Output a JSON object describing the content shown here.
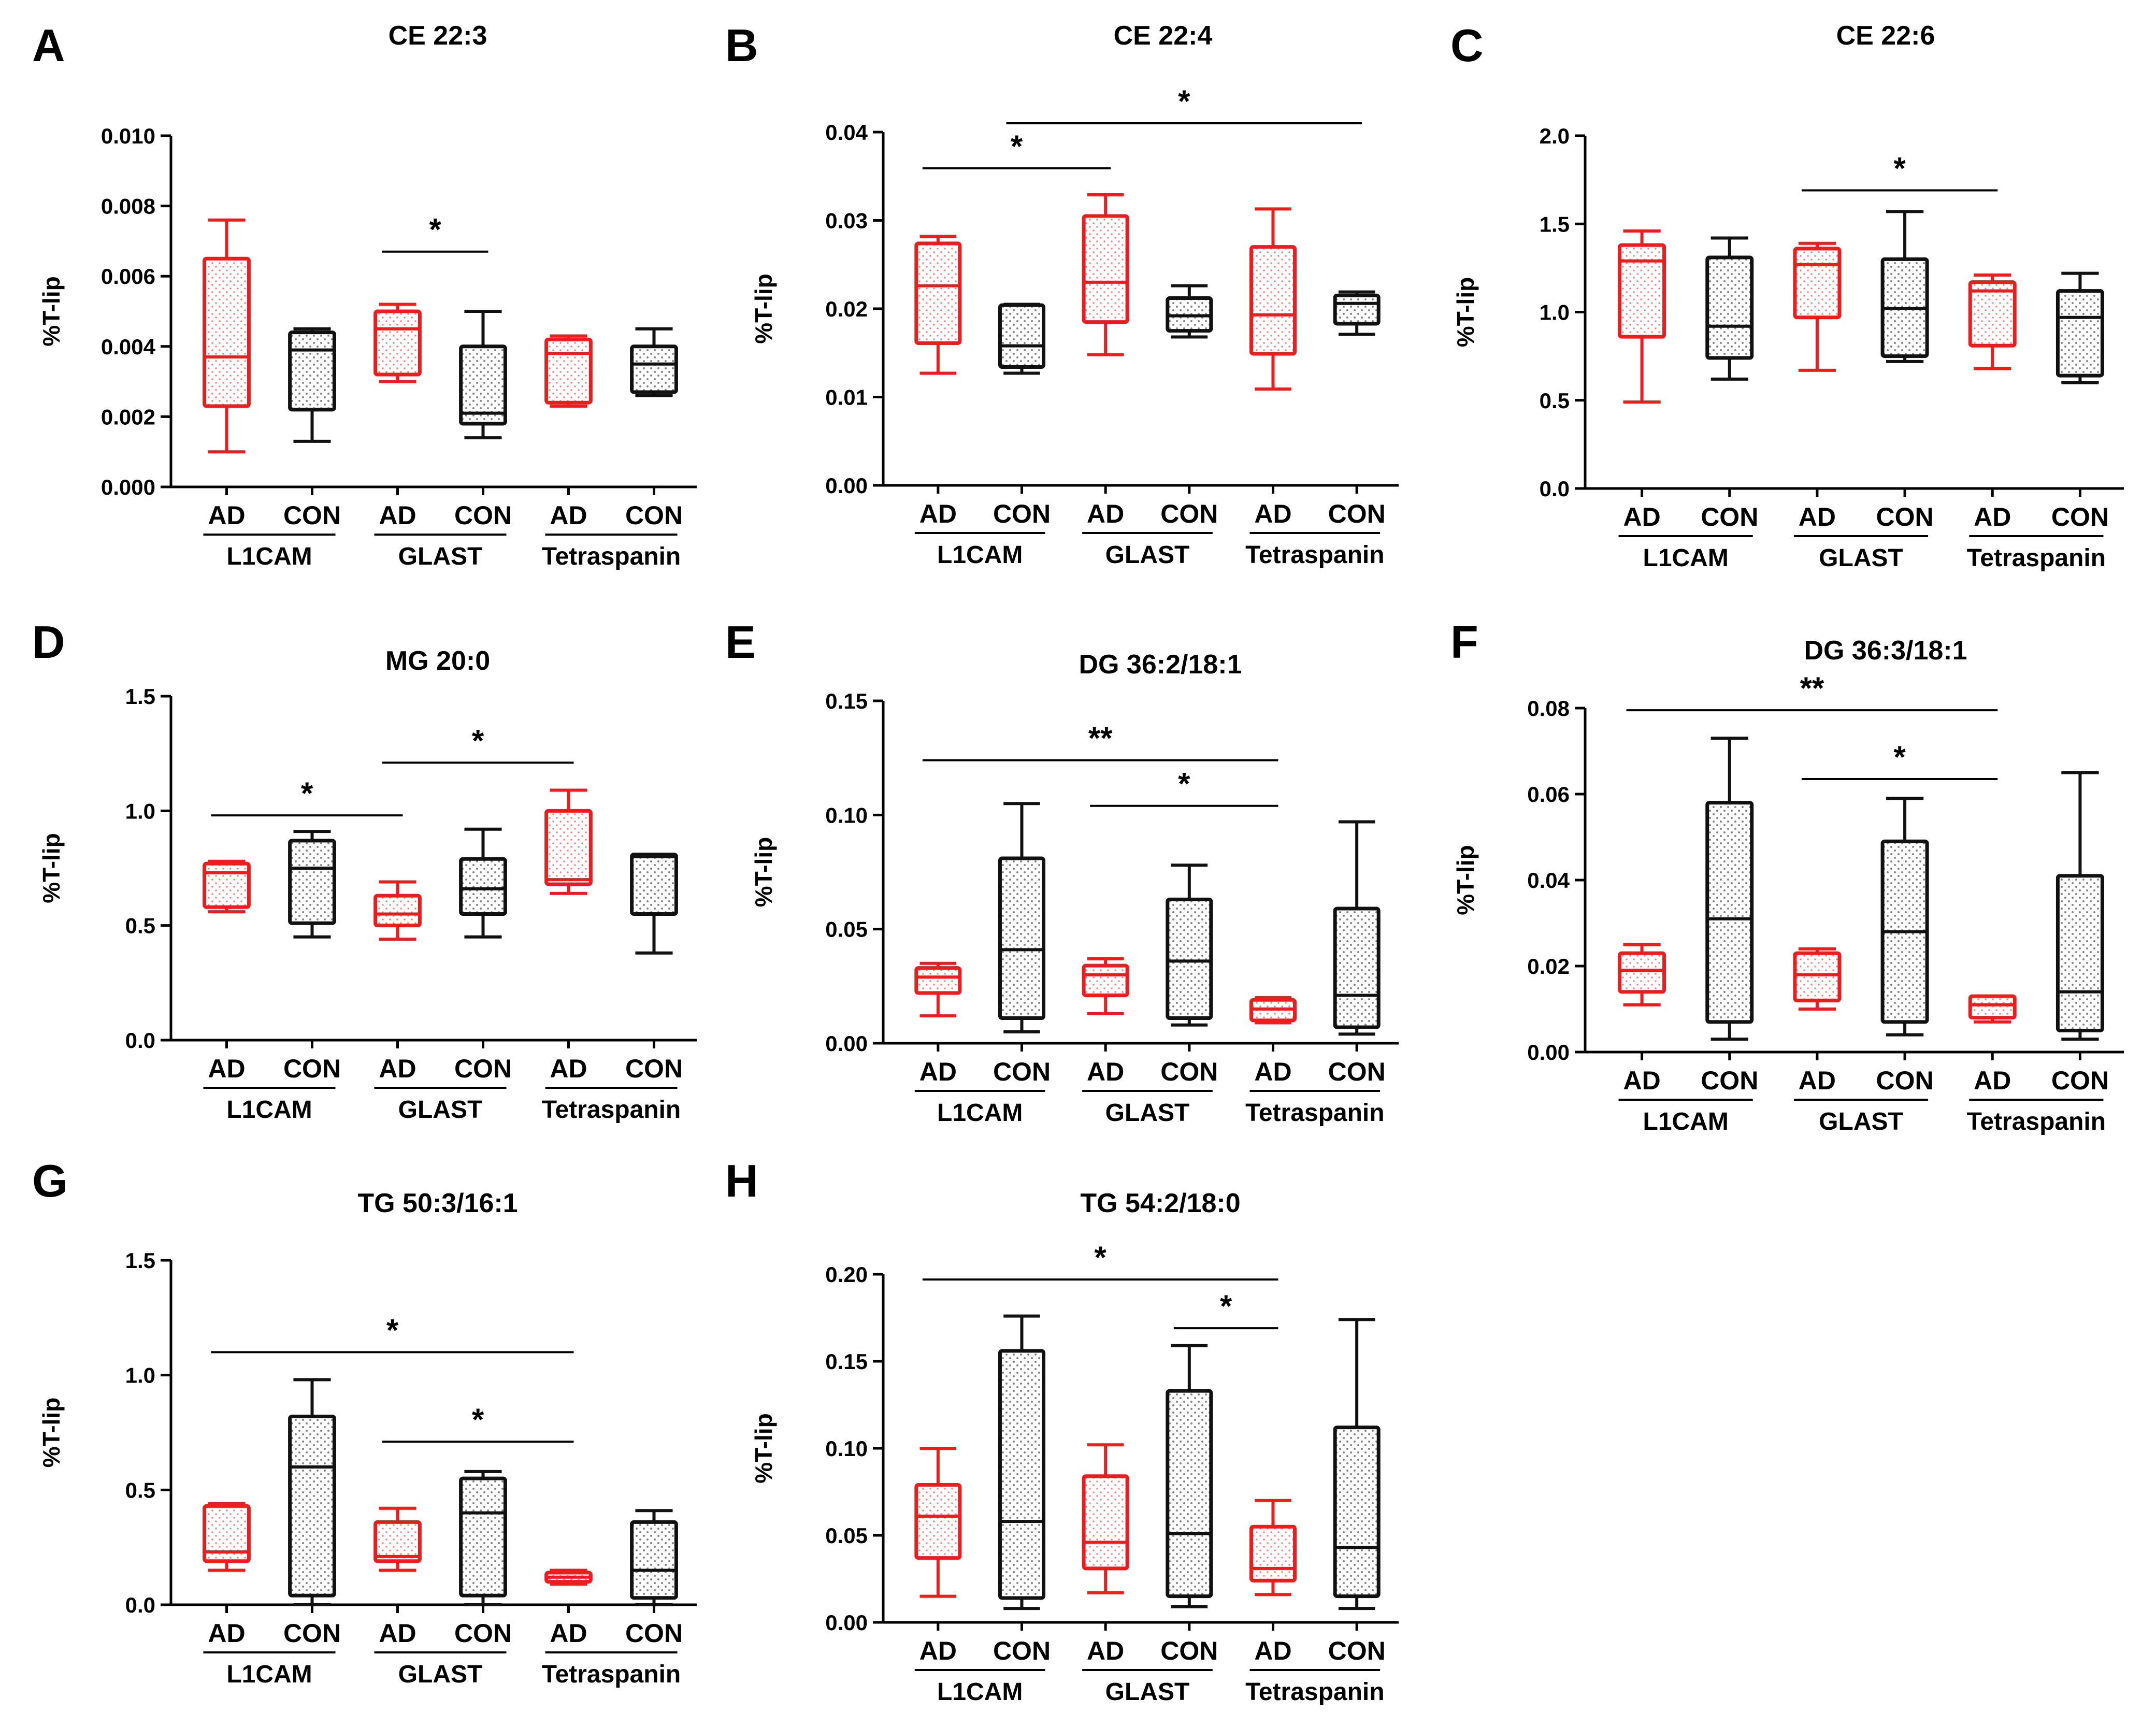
{
  "colors": {
    "ad": "#ee1c1c",
    "con": "#111111",
    "axis": "#000000"
  },
  "categories": [
    "AD",
    "CON",
    "AD",
    "CON",
    "AD",
    "CON"
  ],
  "groups": [
    "L1CAM",
    "GLAST",
    "Tetraspanin"
  ],
  "chart_data": [
    {
      "panel": "A",
      "title": "CE 22:3",
      "type": "boxplot",
      "ylabel": "%T-lip",
      "ylim": [
        0,
        0.01
      ],
      "yticks": [
        "0.000",
        "0.002",
        "0.004",
        "0.006",
        "0.008",
        "0.010"
      ],
      "boxes": [
        {
          "min": 0.001,
          "q1": 0.0023,
          "median": 0.0037,
          "q3": 0.0065,
          "max": 0.0076
        },
        {
          "min": 0.0013,
          "q1": 0.0022,
          "median": 0.0039,
          "q3": 0.0044,
          "max": 0.0045
        },
        {
          "min": 0.003,
          "q1": 0.0032,
          "median": 0.0045,
          "q3": 0.005,
          "max": 0.0052
        },
        {
          "min": 0.0014,
          "q1": 0.0018,
          "median": 0.0021,
          "q3": 0.004,
          "max": 0.005
        },
        {
          "min": 0.0023,
          "q1": 0.0024,
          "median": 0.0038,
          "q3": 0.0042,
          "max": 0.0043
        },
        {
          "min": 0.0026,
          "q1": 0.0027,
          "median": 0.0035,
          "q3": 0.004,
          "max": 0.0045
        }
      ],
      "significance": [
        {
          "from": 2,
          "to": 3,
          "level": 0.0067,
          "label": "*"
        }
      ]
    },
    {
      "panel": "B",
      "title": "CE 22:4",
      "type": "boxplot",
      "ylabel": "%T-lip",
      "ylim": [
        0,
        0.04
      ],
      "yticks": [
        "0.00",
        "0.01",
        "0.02",
        "0.03",
        "0.04"
      ],
      "boxes": [
        {
          "min": 0.0127,
          "q1": 0.0161,
          "median": 0.0226,
          "q3": 0.0274,
          "max": 0.0282
        },
        {
          "min": 0.0127,
          "q1": 0.0134,
          "median": 0.0158,
          "q3": 0.0204,
          "max": 0.0205
        },
        {
          "min": 0.0148,
          "q1": 0.0185,
          "median": 0.023,
          "q3": 0.0305,
          "max": 0.0329
        },
        {
          "min": 0.0168,
          "q1": 0.0175,
          "median": 0.0192,
          "q3": 0.0212,
          "max": 0.0226
        },
        {
          "min": 0.0109,
          "q1": 0.0149,
          "median": 0.0193,
          "q3": 0.027,
          "max": 0.0313
        },
        {
          "min": 0.0171,
          "q1": 0.0183,
          "median": 0.0206,
          "q3": 0.0215,
          "max": 0.0219
        }
      ],
      "significance": [
        {
          "from": 0,
          "to": 2,
          "level": 0.0359,
          "label": "*"
        },
        {
          "from": 1,
          "to": 5,
          "level": 0.041,
          "label": "*"
        }
      ]
    },
    {
      "panel": "C",
      "title": "CE 22:6",
      "type": "boxplot",
      "ylabel": "%T-lip",
      "ylim": [
        0,
        2.0
      ],
      "yticks": [
        "0.0",
        "0.5",
        "1.0",
        "1.5",
        "2.0"
      ],
      "boxes": [
        {
          "min": 0.49,
          "q1": 0.86,
          "median": 1.29,
          "q3": 1.38,
          "max": 1.46
        },
        {
          "min": 0.62,
          "q1": 0.74,
          "median": 0.92,
          "q3": 1.31,
          "max": 1.42
        },
        {
          "min": 0.67,
          "q1": 0.97,
          "median": 1.27,
          "q3": 1.36,
          "max": 1.39
        },
        {
          "min": 0.72,
          "q1": 0.75,
          "median": 1.02,
          "q3": 1.3,
          "max": 1.57
        },
        {
          "min": 0.68,
          "q1": 0.81,
          "median": 1.12,
          "q3": 1.17,
          "max": 1.21
        },
        {
          "min": 0.6,
          "q1": 0.64,
          "median": 0.97,
          "q3": 1.12,
          "max": 1.22
        }
      ],
      "significance": [
        {
          "from": 2,
          "to": 4,
          "level": 1.69,
          "label": "*"
        }
      ]
    },
    {
      "panel": "D",
      "title": "MG 20:0",
      "type": "boxplot",
      "ylabel": "%T-lip",
      "ylim": [
        0,
        1.5
      ],
      "yticks": [
        "0.0",
        "0.5",
        "1.0",
        "1.5"
      ],
      "boxes": [
        {
          "min": 0.56,
          "q1": 0.58,
          "median": 0.73,
          "q3": 0.77,
          "max": 0.78
        },
        {
          "min": 0.45,
          "q1": 0.51,
          "median": 0.75,
          "q3": 0.87,
          "max": 0.91
        },
        {
          "min": 0.44,
          "q1": 0.5,
          "median": 0.55,
          "q3": 0.63,
          "max": 0.69
        },
        {
          "min": 0.45,
          "q1": 0.55,
          "median": 0.66,
          "q3": 0.79,
          "max": 0.92
        },
        {
          "min": 0.64,
          "q1": 0.68,
          "median": 0.7,
          "q3": 1.0,
          "max": 1.09
        },
        {
          "min": 0.38,
          "q1": 0.55,
          "median": 0.8,
          "q3": 0.81,
          "max": 0.81
        }
      ],
      "significance": [
        {
          "from": 0,
          "to": 2,
          "level": 0.98,
          "label": "*"
        },
        {
          "from": 2,
          "to": 4,
          "level": 1.21,
          "label": "*"
        }
      ]
    },
    {
      "panel": "E",
      "title": "DG 36:2/18:1",
      "type": "boxplot",
      "ylabel": "%T-lip",
      "ylim": [
        0,
        0.15
      ],
      "yticks": [
        "0.00",
        "0.05",
        "0.10",
        "0.15"
      ],
      "boxes": [
        {
          "min": 0.012,
          "q1": 0.022,
          "median": 0.029,
          "q3": 0.033,
          "max": 0.035
        },
        {
          "min": 0.005,
          "q1": 0.011,
          "median": 0.041,
          "q3": 0.081,
          "max": 0.105
        },
        {
          "min": 0.013,
          "q1": 0.021,
          "median": 0.03,
          "q3": 0.034,
          "max": 0.037
        },
        {
          "min": 0.008,
          "q1": 0.011,
          "median": 0.036,
          "q3": 0.063,
          "max": 0.078
        },
        {
          "min": 0.009,
          "q1": 0.01,
          "median": 0.015,
          "q3": 0.019,
          "max": 0.02
        },
        {
          "min": 0.004,
          "q1": 0.007,
          "median": 0.021,
          "q3": 0.059,
          "max": 0.097
        }
      ],
      "significance": [
        {
          "from": 0,
          "to": 4,
          "level": 0.124,
          "label": "**"
        },
        {
          "from": 2,
          "to": 4,
          "level": 0.104,
          "label": "*"
        }
      ]
    },
    {
      "panel": "F",
      "title": "DG 36:3/18:1",
      "type": "boxplot",
      "ylabel": "%T-lip",
      "ylim": [
        0,
        0.08
      ],
      "yticks": [
        "0.00",
        "0.02",
        "0.04",
        "0.06",
        "0.08"
      ],
      "boxes": [
        {
          "min": 0.011,
          "q1": 0.014,
          "median": 0.019,
          "q3": 0.023,
          "max": 0.025
        },
        {
          "min": 0.003,
          "q1": 0.007,
          "median": 0.031,
          "q3": 0.058,
          "max": 0.073
        },
        {
          "min": 0.01,
          "q1": 0.012,
          "median": 0.018,
          "q3": 0.023,
          "max": 0.024
        },
        {
          "min": 0.004,
          "q1": 0.007,
          "median": 0.028,
          "q3": 0.049,
          "max": 0.059
        },
        {
          "min": 0.007,
          "q1": 0.008,
          "median": 0.011,
          "q3": 0.013,
          "max": 0.013
        },
        {
          "min": 0.003,
          "q1": 0.005,
          "median": 0.014,
          "q3": 0.041,
          "max": 0.065
        }
      ],
      "significance": [
        {
          "from": 0,
          "to": 4,
          "level": 0.0795,
          "label": "**"
        },
        {
          "from": 2,
          "to": 4,
          "level": 0.0635,
          "label": "*"
        }
      ]
    },
    {
      "panel": "G",
      "title": "TG 50:3/16:1",
      "type": "boxplot",
      "ylabel": "%T-lip",
      "ylim": [
        0,
        1.5
      ],
      "yticks": [
        "0.0",
        "0.5",
        "1.0",
        "1.5"
      ],
      "boxes": [
        {
          "min": 0.15,
          "q1": 0.19,
          "median": 0.23,
          "q3": 0.43,
          "max": 0.44
        },
        {
          "min": 0.0,
          "q1": 0.04,
          "median": 0.6,
          "q3": 0.82,
          "max": 0.98
        },
        {
          "min": 0.15,
          "q1": 0.19,
          "median": 0.21,
          "q3": 0.36,
          "max": 0.42
        },
        {
          "min": 0.0,
          "q1": 0.04,
          "median": 0.4,
          "q3": 0.55,
          "max": 0.58
        },
        {
          "min": 0.09,
          "q1": 0.1,
          "median": 0.12,
          "q3": 0.14,
          "max": 0.15
        },
        {
          "min": 0.0,
          "q1": 0.03,
          "median": 0.15,
          "q3": 0.36,
          "max": 0.41
        }
      ],
      "significance": [
        {
          "from": 0,
          "to": 4,
          "level": 1.1,
          "label": "*"
        },
        {
          "from": 2,
          "to": 4,
          "level": 0.71,
          "label": "*"
        }
      ]
    },
    {
      "panel": "H",
      "title": "TG 54:2/18:0",
      "type": "boxplot",
      "ylabel": "%T-lip",
      "ylim": [
        0,
        0.2
      ],
      "yticks": [
        "0.00",
        "0.05",
        "0.10",
        "0.15",
        "0.20"
      ],
      "boxes": [
        {
          "min": 0.015,
          "q1": 0.037,
          "median": 0.061,
          "q3": 0.079,
          "max": 0.1
        },
        {
          "min": 0.008,
          "q1": 0.014,
          "median": 0.058,
          "q3": 0.156,
          "max": 0.176
        },
        {
          "min": 0.017,
          "q1": 0.031,
          "median": 0.046,
          "q3": 0.084,
          "max": 0.102
        },
        {
          "min": 0.009,
          "q1": 0.015,
          "median": 0.051,
          "q3": 0.133,
          "max": 0.159
        },
        {
          "min": 0.016,
          "q1": 0.024,
          "median": 0.031,
          "q3": 0.055,
          "max": 0.07
        },
        {
          "min": 0.008,
          "q1": 0.015,
          "median": 0.043,
          "q3": 0.112,
          "max": 0.174
        }
      ],
      "significance": [
        {
          "from": 0,
          "to": 4,
          "level": 0.197,
          "label": "*"
        },
        {
          "from": 3,
          "to": 4,
          "level": 0.169,
          "label": "*"
        }
      ]
    }
  ]
}
